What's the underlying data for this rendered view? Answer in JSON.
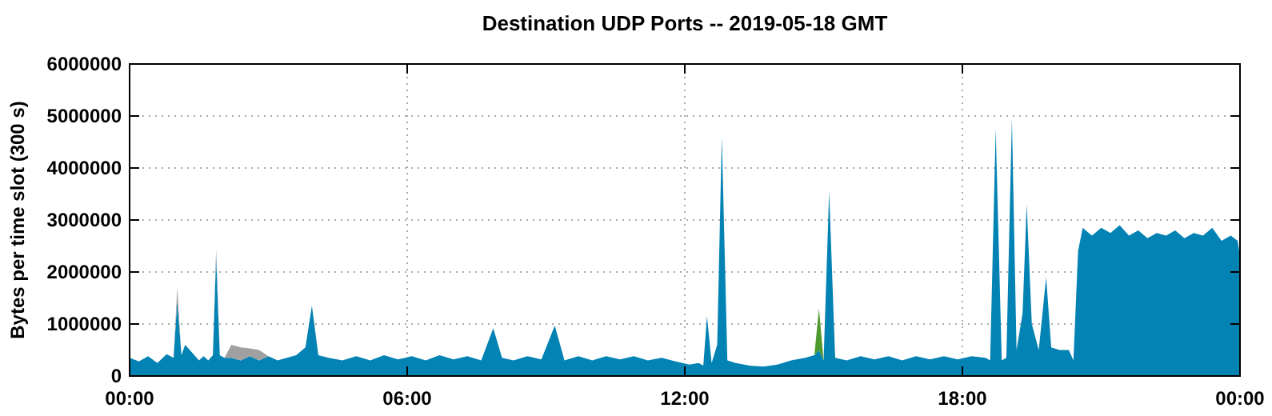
{
  "chart_data": {
    "type": "area",
    "title": "Destination UDP Ports -- 2019-05-18 GMT",
    "ylabel": "Bytes per time slot (300 s)",
    "stacked": true,
    "grid": true,
    "x": [
      0,
      0.2,
      0.4,
      0.6,
      0.8,
      0.95,
      1.03,
      1.12,
      1.2,
      1.3,
      1.4,
      1.5,
      1.6,
      1.7,
      1.8,
      1.87,
      1.95,
      2.05,
      2.2,
      2.4,
      2.6,
      2.8,
      3.0,
      3.2,
      3.4,
      3.6,
      3.8,
      3.94,
      4.08,
      4.3,
      4.6,
      4.9,
      5.2,
      5.5,
      5.8,
      6.1,
      6.4,
      6.7,
      7.0,
      7.3,
      7.6,
      7.86,
      8.05,
      8.3,
      8.6,
      8.9,
      9.19,
      9.4,
      9.7,
      10.0,
      10.3,
      10.6,
      10.9,
      11.2,
      11.5,
      11.8,
      12.1,
      12.3,
      12.4,
      12.48,
      12.58,
      12.7,
      12.8,
      12.92,
      13.1,
      13.4,
      13.7,
      14.0,
      14.3,
      14.6,
      14.8,
      14.9,
      15.0,
      15.12,
      15.25,
      15.5,
      15.8,
      16.1,
      16.4,
      16.7,
      17.0,
      17.3,
      17.6,
      17.9,
      18.2,
      18.5,
      18.6,
      18.72,
      18.85,
      18.95,
      19.07,
      19.17,
      19.3,
      19.39,
      19.5,
      19.65,
      19.81,
      19.92,
      20.1,
      20.3,
      20.4,
      20.5,
      20.6,
      20.8,
      21.0,
      21.2,
      21.4,
      21.6,
      21.8,
      22.0,
      22.2,
      22.4,
      22.6,
      22.8,
      23.0,
      23.2,
      23.4,
      23.6,
      23.8,
      23.95,
      24
    ],
    "xlim": [
      0,
      24
    ],
    "xticks": [
      {
        "value": 0,
        "label": "00:00"
      },
      {
        "value": 6,
        "label": "06:00"
      },
      {
        "value": 12,
        "label": "12:00"
      },
      {
        "value": 18,
        "label": "18:00"
      },
      {
        "value": 24,
        "label": "00:00"
      }
    ],
    "ylim": [
      0,
      6000000
    ],
    "yticks": [
      0,
      1000000,
      2000000,
      3000000,
      4000000,
      5000000,
      6000000
    ],
    "series": [
      {
        "color": "#0382b4",
        "values": [
          350000,
          280000,
          380000,
          250000,
          420000,
          350000,
          1450000,
          400000,
          600000,
          500000,
          400000,
          300000,
          380000,
          300000,
          400000,
          2300000,
          400000,
          350000,
          350000,
          300000,
          380000,
          300000,
          380000,
          300000,
          350000,
          400000,
          550000,
          1350000,
          400000,
          350000,
          300000,
          380000,
          300000,
          400000,
          320000,
          380000,
          300000,
          400000,
          320000,
          380000,
          300000,
          920000,
          350000,
          300000,
          380000,
          320000,
          970000,
          300000,
          380000,
          300000,
          380000,
          320000,
          380000,
          300000,
          350000,
          280000,
          220000,
          250000,
          200000,
          1150000,
          250000,
          600000,
          4600000,
          300000,
          250000,
          200000,
          180000,
          220000,
          300000,
          350000,
          400000,
          500000,
          300000,
          3550000,
          350000,
          300000,
          380000,
          320000,
          380000,
          300000,
          380000,
          320000,
          380000,
          320000,
          380000,
          350000,
          300000,
          4750000,
          300000,
          350000,
          4950000,
          500000,
          1200000,
          3300000,
          1000000,
          500000,
          1900000,
          550000,
          500000,
          500000,
          300000,
          2400000,
          2850000,
          2700000,
          2850000,
          2750000,
          2900000,
          2700000,
          2800000,
          2650000,
          2750000,
          2700000,
          2800000,
          2650000,
          2750000,
          2700000,
          2850000,
          2600000,
          2700000,
          2600000,
          2300000
        ]
      },
      {
        "color": "#a0a0a0",
        "values": [
          null,
          null,
          null,
          null,
          null,
          0,
          250000,
          0,
          null,
          null,
          null,
          null,
          null,
          null,
          0,
          150000,
          0,
          0,
          250000,
          250000,
          150000,
          200000,
          0,
          null,
          null,
          null,
          null,
          null,
          null,
          null,
          null,
          null,
          null,
          null,
          null,
          null,
          null,
          null,
          null,
          null,
          null,
          null,
          null,
          null,
          null,
          null,
          null,
          null,
          null,
          null,
          null,
          null,
          null,
          null,
          null,
          null,
          null,
          null,
          null,
          null,
          null,
          null,
          null,
          null,
          null,
          null,
          null,
          null,
          null,
          null,
          null,
          null,
          null,
          null,
          null,
          null,
          null,
          null,
          null,
          null,
          null,
          null,
          null,
          null,
          null,
          null,
          null,
          null,
          null,
          null,
          null,
          null,
          null,
          null,
          null,
          null,
          null,
          null,
          null,
          null,
          null,
          null,
          null,
          null,
          null,
          null,
          null,
          null,
          null,
          null,
          null,
          null,
          null,
          null,
          null,
          null,
          null,
          null,
          null,
          null,
          null
        ]
      },
      {
        "color": "#4f9a2c",
        "values": [
          null,
          null,
          null,
          null,
          null,
          null,
          null,
          null,
          null,
          null,
          null,
          null,
          null,
          null,
          null,
          null,
          null,
          null,
          null,
          null,
          null,
          null,
          null,
          null,
          null,
          null,
          null,
          null,
          null,
          null,
          null,
          null,
          null,
          null,
          null,
          null,
          null,
          null,
          null,
          null,
          null,
          null,
          null,
          null,
          null,
          null,
          null,
          null,
          null,
          null,
          null,
          null,
          null,
          null,
          null,
          null,
          null,
          null,
          null,
          null,
          null,
          null,
          null,
          null,
          null,
          null,
          null,
          null,
          null,
          null,
          0,
          800000,
          0,
          null,
          null,
          null,
          null,
          null,
          null,
          null,
          null,
          null,
          null,
          null,
          null,
          null,
          null,
          null,
          null,
          null,
          null,
          null,
          null,
          null,
          null,
          null,
          null,
          null,
          null,
          null,
          null,
          null,
          null,
          null,
          null,
          null,
          null,
          null,
          null,
          null,
          null,
          null,
          null,
          null,
          null,
          null,
          null,
          null,
          null,
          null,
          null
        ]
      }
    ]
  }
}
